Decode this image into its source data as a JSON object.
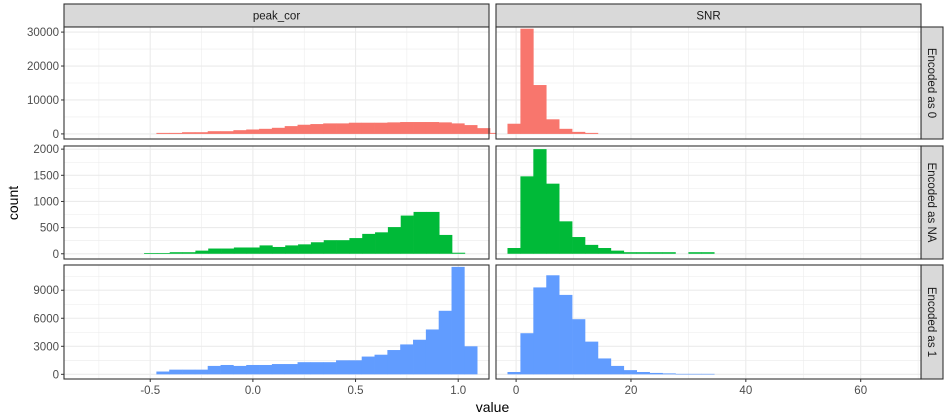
{
  "chart_data": {
    "type": "bar",
    "subtype": "faceted_histogram",
    "xlabel": "value",
    "ylabel": "count",
    "facet_columns": [
      "peak_cor",
      "SNR"
    ],
    "facet_rows": [
      "Encoded as 0",
      "Encoded as NA",
      "Encoded as 1"
    ],
    "x_axes": {
      "peak_cor": {
        "ticks": [
          -0.5,
          0.0,
          0.5,
          1.0
        ],
        "tick_labels": [
          "-0.5",
          "0.0",
          "0.5",
          "1.0"
        ],
        "xlim": [
          -0.92,
          1.15
        ],
        "binwidth": 0.0625
      },
      "SNR": {
        "ticks": [
          0,
          20,
          40,
          60
        ],
        "tick_labels": [
          "0",
          "20",
          "40",
          "60"
        ],
        "xlim": [
          -3.5,
          70.5
        ],
        "binwidth": 2.25
      }
    },
    "y_axes": {
      "Encoded as 0": {
        "ticks": [
          0,
          10000,
          20000,
          30000
        ],
        "tick_labels": [
          "0",
          "10000",
          "20000",
          "30000"
        ],
        "ylim": [
          -1500,
          31500
        ]
      },
      "Encoded as NA": {
        "ticks": [
          0,
          500,
          1000,
          1500,
          2000
        ],
        "tick_labels": [
          "0",
          "500",
          "1000",
          "1500",
          "2000"
        ],
        "ylim": [
          -100,
          2060
        ]
      },
      "Encoded as 1": {
        "ticks": [
          0,
          3000,
          6000,
          9000
        ],
        "tick_labels": [
          "0",
          "3000",
          "6000",
          "9000"
        ],
        "ylim": [
          -500,
          11700
        ]
      }
    },
    "colors": {
      "Encoded as 0": "#F8766D",
      "Encoded as NA": "#00BA38",
      "Encoded as 1": "#619CFF"
    },
    "series": [
      {
        "name": "Encoded as 0",
        "facet": "peak_cor",
        "bin_start": -0.47,
        "values": [
          300,
          300,
          500,
          500,
          800,
          800,
          1100,
          1300,
          1500,
          1800,
          2300,
          2700,
          2900,
          3100,
          3100,
          3300,
          3300,
          3300,
          3400,
          3500,
          3500,
          3500,
          3400,
          3100,
          2600,
          1700,
          300
        ]
      },
      {
        "name": "Encoded as 0",
        "facet": "SNR",
        "bin_start": -1.5,
        "values": [
          3000,
          31000,
          14400,
          4300,
          1500,
          600,
          300
        ]
      },
      {
        "name": "Encoded as NA",
        "facet": "peak_cor",
        "bin_start": -0.53,
        "values": [
          15,
          15,
          30,
          30,
          60,
          100,
          100,
          120,
          120,
          160,
          130,
          160,
          180,
          220,
          260,
          260,
          300,
          380,
          410,
          510,
          730,
          800,
          800,
          360,
          20
        ]
      },
      {
        "name": "Encoded as NA",
        "facet": "SNR",
        "bin_start": -1.5,
        "values": [
          110,
          1480,
          2000,
          1340,
          620,
          320,
          170,
          110,
          60,
          30,
          30,
          30,
          30,
          0,
          30,
          30
        ]
      },
      {
        "name": "Encoded as 1",
        "facet": "peak_cor",
        "bin_start": -0.47,
        "values": [
          300,
          500,
          500,
          500,
          900,
          1000,
          900,
          1000,
          1000,
          1100,
          1100,
          1300,
          1300,
          1300,
          1500,
          1500,
          1900,
          2100,
          2600,
          3200,
          3700,
          4800,
          6800,
          11500,
          3000
        ]
      },
      {
        "name": "Encoded as 1",
        "facet": "SNR",
        "bin_start": -1.5,
        "values": [
          250,
          4400,
          9300,
          10600,
          8500,
          5900,
          3500,
          1700,
          900,
          450,
          250,
          150,
          100,
          50,
          50,
          50
        ]
      }
    ]
  }
}
